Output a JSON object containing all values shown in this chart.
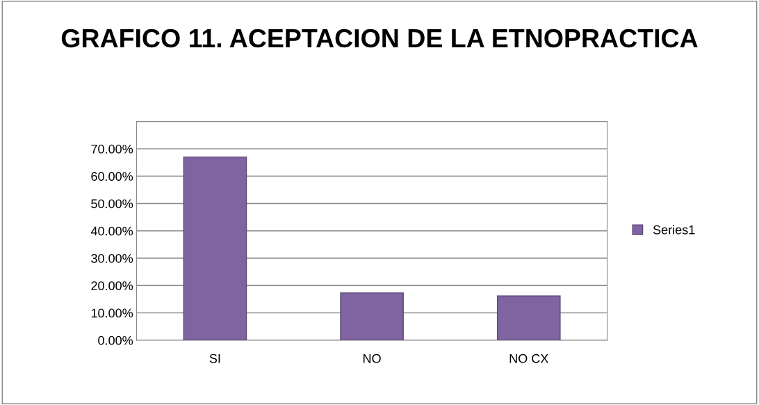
{
  "chart_data": {
    "type": "bar",
    "title": "GRAFICO 11. ACEPTACION DE LA ETNOPRACTICA",
    "categories": [
      "SI",
      "NO",
      "NO CX"
    ],
    "series": [
      {
        "name": "Series1",
        "color": "#8064a2",
        "values": [
          67,
          17.3,
          16.2
        ]
      }
    ],
    "ylim": [
      0,
      80
    ],
    "yticks": [
      {
        "value": 0,
        "label": "0.00%"
      },
      {
        "value": 10,
        "label": "10.00%"
      },
      {
        "value": 20,
        "label": "20.00%"
      },
      {
        "value": 30,
        "label": "30.00%"
      },
      {
        "value": 40,
        "label": "40.00%"
      },
      {
        "value": 50,
        "label": "50.00%"
      },
      {
        "value": 60,
        "label": "60.00%"
      },
      {
        "value": 70,
        "label": "70.00%"
      }
    ],
    "grid": "y",
    "legend": "right"
  }
}
